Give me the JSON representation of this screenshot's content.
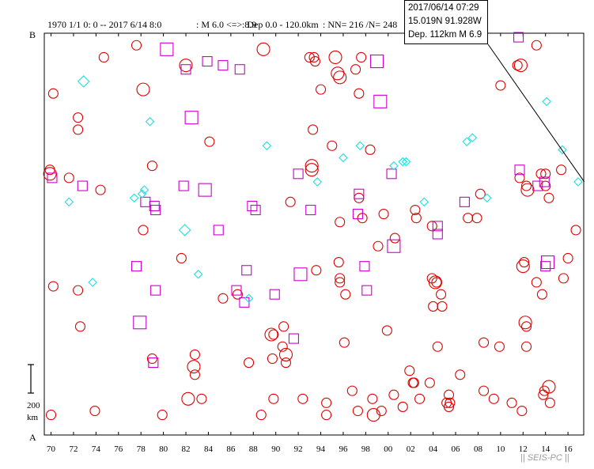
{
  "header": {
    "period": "1970 1/1 0: 0 -- 2017 6/14 8:0",
    "magnitude": ": M 6.0 <=> 8.9",
    "depth": ": Dep 0.0 - 120.0km",
    "count": ": NN= 216 /N= 248"
  },
  "section": {
    "top_label": "B",
    "bottom_label": "A"
  },
  "scale_bar": {
    "value": "200",
    "unit": "km"
  },
  "watermark": "|| SEIS-PC ||",
  "tooltip": {
    "datetime": "2017/06/14 07:29",
    "location": "15.019N   91.928W",
    "depth_mag": "Dep. 112km    M 6.9"
  },
  "colors": {
    "circle": "#dd0000",
    "square": "#cc00cc",
    "diamond": "#22dddd",
    "axes": "#000000"
  },
  "chart_data": {
    "type": "scatter",
    "xaxis": {
      "ticks": [
        "70",
        "72",
        "74",
        "76",
        "78",
        "80",
        "82",
        "84",
        "86",
        "88",
        "90",
        "92",
        "94",
        "96",
        "98",
        "00",
        "02",
        "04",
        "06",
        "08",
        "10",
        "12",
        "14",
        "16"
      ],
      "xlim": [
        1969.4,
        2017.4
      ],
      "unit": "year"
    },
    "yaxis": {
      "ylim": [
        0,
        1
      ],
      "top": "B",
      "bottom": "A"
    },
    "highlight": {
      "x": 2017.45,
      "y": 0.63
    },
    "series": [
      {
        "marker": "circle",
        "points": [
          [
            1970.2,
            0.85,
            2
          ],
          [
            1969.9,
            0.66,
            2
          ],
          [
            1969.9,
            0.65,
            3
          ],
          [
            1970.2,
            0.37,
            2
          ],
          [
            1970.0,
            0.05,
            2
          ],
          [
            1971.6,
            0.64,
            2
          ],
          [
            1972.4,
            0.79,
            2
          ],
          [
            1972.4,
            0.76,
            2
          ],
          [
            1972.4,
            0.36,
            2
          ],
          [
            1972.6,
            0.27,
            2
          ],
          [
            1973.9,
            0.06,
            2
          ],
          [
            1974.4,
            0.61,
            2
          ],
          [
            1974.7,
            0.94,
            2
          ],
          [
            1977.6,
            0.97,
            2
          ],
          [
            1978.2,
            0.86,
            3
          ],
          [
            1978.2,
            0.51,
            2
          ],
          [
            1979.0,
            0.67,
            2
          ],
          [
            1979.0,
            0.19,
            2
          ],
          [
            1979.9,
            0.05,
            2
          ],
          [
            1981.6,
            0.44,
            2
          ],
          [
            1982.0,
            0.92,
            3
          ],
          [
            1982.7,
            0.17,
            3
          ],
          [
            1982.8,
            0.2,
            2
          ],
          [
            1982.8,
            0.15,
            2
          ],
          [
            1982.2,
            0.09,
            3
          ],
          [
            1983.4,
            0.09,
            2
          ],
          [
            1984.1,
            0.73,
            2
          ],
          [
            1985.3,
            0.34,
            2
          ],
          [
            1986.6,
            0.35,
            2
          ],
          [
            1987.6,
            0.18,
            2
          ],
          [
            1988.9,
            0.96,
            3
          ],
          [
            1988.7,
            0.05,
            2
          ],
          [
            1989.8,
            0.25,
            2
          ],
          [
            1989.6,
            0.25,
            3
          ],
          [
            1989.7,
            0.19,
            2
          ],
          [
            1989.8,
            0.09,
            2
          ],
          [
            1990.6,
            0.22,
            2
          ],
          [
            1990.7,
            0.27,
            2
          ],
          [
            1990.9,
            0.2,
            3
          ],
          [
            1990.9,
            0.18,
            2
          ],
          [
            1991.3,
            0.58,
            2
          ],
          [
            1992.4,
            0.09,
            2
          ],
          [
            1993.0,
            0.94,
            2
          ],
          [
            1993.4,
            0.94,
            2
          ],
          [
            1993.5,
            0.93,
            2
          ],
          [
            1993.3,
            0.76,
            2
          ],
          [
            1993.2,
            0.67,
            3
          ],
          [
            1993.2,
            0.66,
            3
          ],
          [
            1993.6,
            0.41,
            2
          ],
          [
            1994.0,
            0.86,
            2
          ],
          [
            1994.5,
            0.08,
            2
          ],
          [
            1994.5,
            0.05,
            2
          ],
          [
            1995.0,
            0.72,
            2
          ],
          [
            1995.3,
            0.94,
            3
          ],
          [
            1995.5,
            0.9,
            3
          ],
          [
            1995.7,
            0.89,
            3
          ],
          [
            1995.7,
            0.53,
            2
          ],
          [
            1995.7,
            0.38,
            2
          ],
          [
            1995.7,
            0.39,
            2
          ],
          [
            1995.6,
            0.43,
            2
          ],
          [
            1996.2,
            0.35,
            2
          ],
          [
            1996.1,
            0.23,
            2
          ],
          [
            1996.8,
            0.11,
            2
          ],
          [
            1997.1,
            0.91,
            2
          ],
          [
            1997.4,
            0.85,
            2
          ],
          [
            1997.6,
            0.94,
            2
          ],
          [
            1997.4,
            0.59,
            2
          ],
          [
            1997.7,
            0.54,
            2
          ],
          [
            1997.3,
            0.06,
            2
          ],
          [
            1998.4,
            0.71,
            2
          ],
          [
            1998.6,
            0.09,
            2
          ],
          [
            1998.7,
            0.05,
            3
          ],
          [
            1999.1,
            0.47,
            2
          ],
          [
            1999.4,
            0.06,
            2
          ],
          [
            1999.6,
            0.55,
            2
          ],
          [
            1999.9,
            0.26,
            2
          ],
          [
            2000.6,
            0.49,
            2
          ],
          [
            2000.5,
            0.1,
            2
          ],
          [
            2001.3,
            0.07,
            2
          ],
          [
            2001.9,
            0.16,
            2
          ],
          [
            2002.2,
            0.13,
            2
          ],
          [
            2002.3,
            0.13,
            2
          ],
          [
            2002.4,
            0.56,
            2
          ],
          [
            2002.5,
            0.54,
            2
          ],
          [
            2002.8,
            0.09,
            2
          ],
          [
            2003.7,
            0.13,
            2
          ],
          [
            2003.9,
            0.52,
            2
          ],
          [
            2003.9,
            0.39,
            2
          ],
          [
            2004.0,
            0.32,
            2
          ],
          [
            2004.2,
            0.38,
            3
          ],
          [
            2004.3,
            0.38,
            2
          ],
          [
            2004.4,
            0.22,
            2
          ],
          [
            2004.7,
            0.35,
            2
          ],
          [
            2004.8,
            0.32,
            2
          ],
          [
            2005.2,
            0.08,
            2
          ],
          [
            2005.4,
            0.07,
            2
          ],
          [
            2005.5,
            0.08,
            2
          ],
          [
            2005.4,
            0.1,
            2
          ],
          [
            2006.4,
            0.15,
            2
          ],
          [
            2007.1,
            0.54,
            2
          ],
          [
            2007.9,
            0.54,
            2
          ],
          [
            2008.2,
            0.6,
            2
          ],
          [
            2008.5,
            0.23,
            2
          ],
          [
            2008.5,
            0.11,
            2
          ],
          [
            2009.4,
            0.09,
            2
          ],
          [
            2009.9,
            0.22,
            2
          ],
          [
            2010.0,
            0.87,
            2
          ],
          [
            2011.0,
            0.08,
            2
          ],
          [
            2011.5,
            0.92,
            2
          ],
          [
            2011.8,
            0.92,
            3
          ],
          [
            2011.7,
            0.64,
            2
          ],
          [
            2011.9,
            0.06,
            2
          ],
          [
            2012.0,
            0.42,
            3
          ],
          [
            2012.1,
            0.43,
            2
          ],
          [
            2012.2,
            0.28,
            3
          ],
          [
            2012.3,
            0.27,
            2
          ],
          [
            2012.3,
            0.22,
            2
          ],
          [
            2012.3,
            0.62,
            2
          ],
          [
            2012.4,
            0.61,
            3
          ],
          [
            2013.2,
            0.97,
            2
          ],
          [
            2013.2,
            0.38,
            2
          ],
          [
            2013.6,
            0.65,
            2
          ],
          [
            2013.7,
            0.35,
            2
          ],
          [
            2013.8,
            0.1,
            2
          ],
          [
            2013.9,
            0.11,
            2
          ],
          [
            2014.0,
            0.65,
            2
          ],
          [
            2014.0,
            0.62,
            2
          ],
          [
            2014.3,
            0.59,
            2
          ],
          [
            2014.3,
            0.12,
            3
          ],
          [
            2014.4,
            0.08,
            2
          ],
          [
            2015.4,
            0.66,
            2
          ],
          [
            2015.6,
            0.39,
            2
          ],
          [
            2016.0,
            0.44,
            2
          ],
          [
            2016.7,
            0.51,
            2
          ]
        ]
      },
      {
        "marker": "square",
        "points": [
          [
            1970.1,
            0.64,
            1
          ],
          [
            1972.8,
            0.62,
            1
          ],
          [
            1977.6,
            0.42,
            1
          ],
          [
            1977.9,
            0.28,
            2
          ],
          [
            1978.4,
            0.58,
            1
          ],
          [
            1979.2,
            0.57,
            1
          ],
          [
            1979.3,
            0.56,
            1
          ],
          [
            1979.3,
            0.36,
            1
          ],
          [
            1979.1,
            0.18,
            1
          ],
          [
            1980.3,
            0.96,
            2
          ],
          [
            1981.8,
            0.62,
            1
          ],
          [
            1982.0,
            0.91,
            1
          ],
          [
            1982.5,
            0.79,
            2
          ],
          [
            1983.7,
            0.61,
            2
          ],
          [
            1983.9,
            0.93,
            1
          ],
          [
            1984.9,
            0.51,
            1
          ],
          [
            1985.3,
            0.92,
            1
          ],
          [
            1986.5,
            0.36,
            1
          ],
          [
            1986.8,
            0.91,
            1
          ],
          [
            1987.2,
            0.33,
            1
          ],
          [
            1987.4,
            0.41,
            1
          ],
          [
            1987.9,
            0.57,
            1
          ],
          [
            1988.2,
            0.56,
            1
          ],
          [
            1989.9,
            0.35,
            1
          ],
          [
            1991.6,
            0.24,
            1
          ],
          [
            1992.0,
            0.65,
            1
          ],
          [
            1992.2,
            0.4,
            2
          ],
          [
            1993.1,
            0.56,
            1
          ],
          [
            1997.3,
            0.55,
            1
          ],
          [
            1997.4,
            0.6,
            1
          ],
          [
            1997.9,
            0.42,
            1
          ],
          [
            1998.1,
            0.36,
            1
          ],
          [
            1999.0,
            0.93,
            2
          ],
          [
            1999.3,
            0.83,
            2
          ],
          [
            2000.3,
            0.65,
            1
          ],
          [
            2000.5,
            0.47,
            2
          ],
          [
            2004.4,
            0.52,
            1
          ],
          [
            2004.4,
            0.5,
            1
          ],
          [
            2006.8,
            0.58,
            1
          ],
          [
            2011.6,
            0.99,
            1
          ],
          [
            2011.7,
            0.66,
            1
          ],
          [
            2013.3,
            0.62,
            1
          ],
          [
            2013.9,
            0.63,
            1
          ],
          [
            2014.0,
            0.42,
            1
          ],
          [
            2014.2,
            0.43,
            2
          ]
        ]
      },
      {
        "marker": "diamond",
        "points": [
          [
            1972.9,
            0.88,
            2
          ],
          [
            1971.6,
            0.58,
            1
          ],
          [
            1973.7,
            0.38,
            1
          ],
          [
            1977.4,
            0.59,
            1
          ],
          [
            1978.1,
            0.6,
            1
          ],
          [
            1978.3,
            0.61,
            1
          ],
          [
            1978.8,
            0.78,
            1
          ],
          [
            1981.9,
            0.51,
            2
          ],
          [
            1983.1,
            0.4,
            1
          ],
          [
            1987.6,
            0.34,
            1
          ],
          [
            1989.2,
            0.72,
            1
          ],
          [
            1993.7,
            0.63,
            1
          ],
          [
            1996.0,
            0.69,
            1
          ],
          [
            1997.5,
            0.72,
            1
          ],
          [
            2000.5,
            0.67,
            1
          ],
          [
            2001.3,
            0.68,
            1
          ],
          [
            2001.6,
            0.68,
            1
          ],
          [
            2003.2,
            0.58,
            1
          ],
          [
            2007.0,
            0.73,
            1
          ],
          [
            2007.5,
            0.74,
            1
          ],
          [
            2008.8,
            0.59,
            1
          ],
          [
            2014.1,
            0.83,
            1
          ],
          [
            2015.5,
            0.71,
            1
          ],
          [
            2016.9,
            0.63,
            1
          ]
        ]
      }
    ]
  }
}
